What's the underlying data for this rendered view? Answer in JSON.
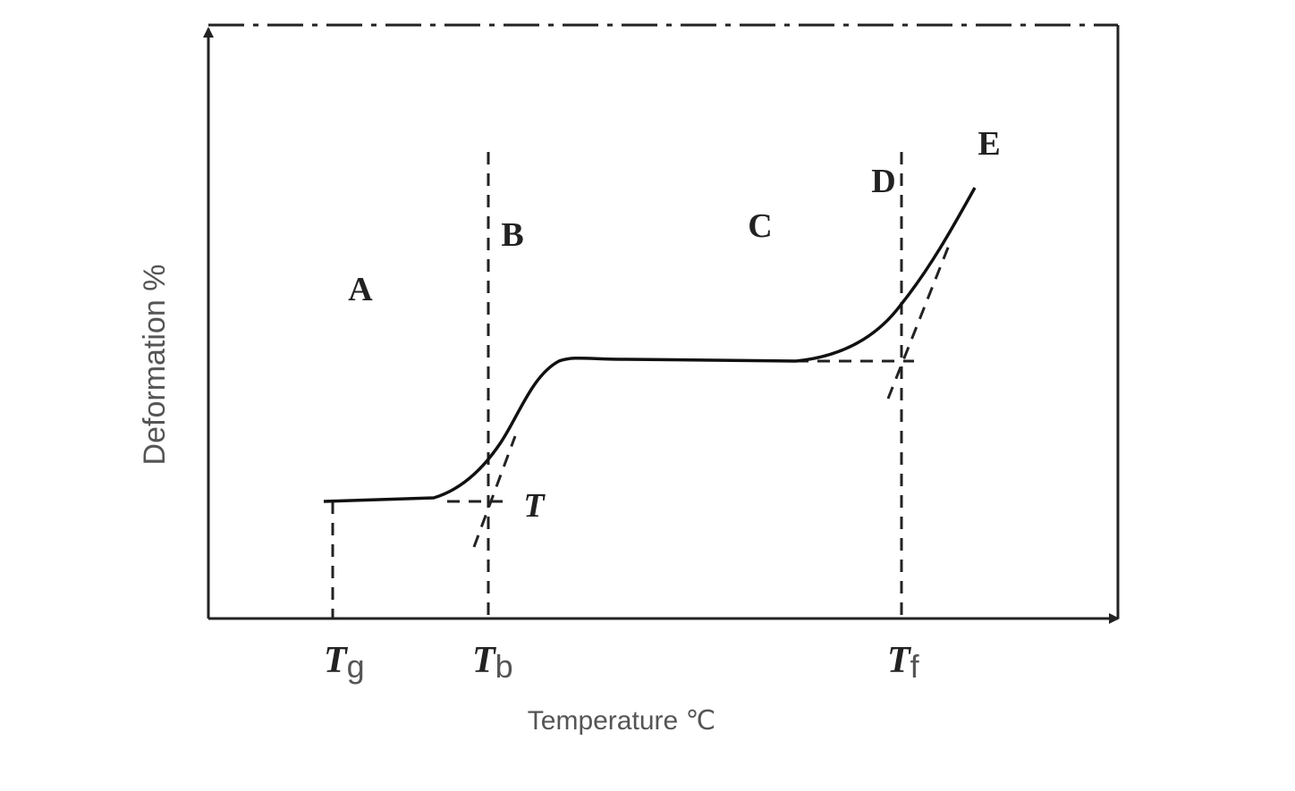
{
  "axes": {
    "y_label": "Deformation %",
    "x_label": "Temperature ℃"
  },
  "regions": [
    "A",
    "B",
    "C",
    "D",
    "E"
  ],
  "tangent_point_label": "T",
  "temperatures": [
    {
      "symbol": "T",
      "subscript": "g"
    },
    {
      "symbol": "T",
      "subscript": "b"
    },
    {
      "symbol": "T",
      "subscript": "f"
    }
  ]
}
